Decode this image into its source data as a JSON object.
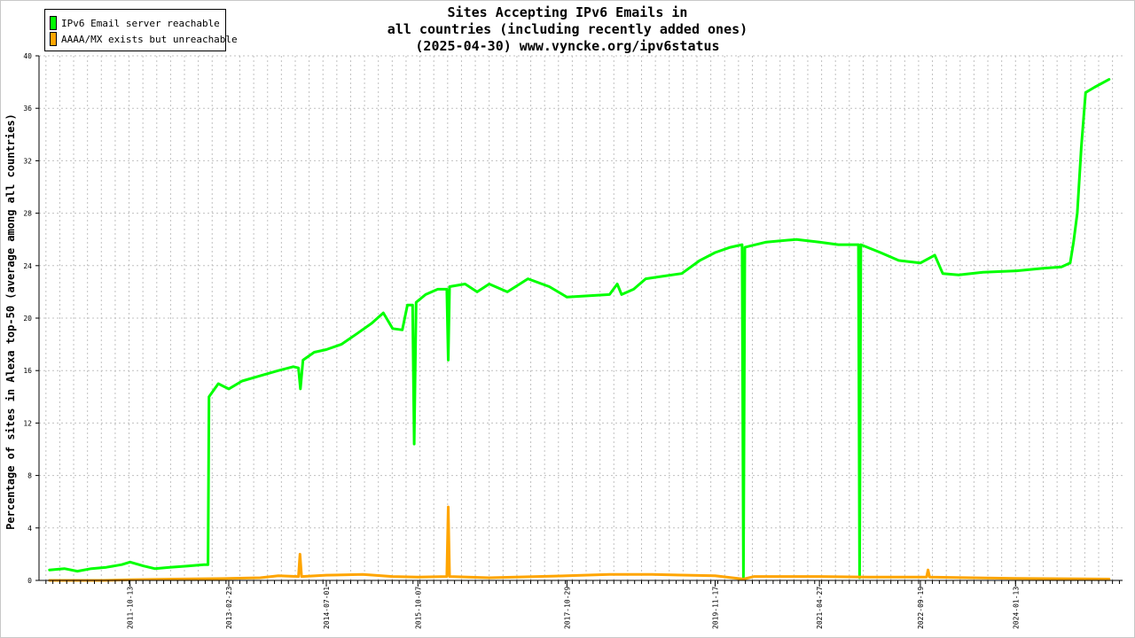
{
  "chart_data": {
    "type": "line",
    "title_lines": [
      "Sites Accepting IPv6 Emails in",
      "all countries (including recently added ones)",
      "(2025-04-30) www.vyncke.org/ipv6status"
    ],
    "xlabel": "",
    "ylabel": "Percentage of sites in Alexa top-50 (average among all countries)",
    "ylim": [
      0,
      40
    ],
    "y_ticks": [
      "0",
      "4",
      "8",
      "12",
      "16",
      "20",
      "24",
      "28",
      "32",
      "36",
      "40"
    ],
    "x_tick_labels": [
      "2011-10-13",
      "2013-02-23",
      "2014-07-01",
      "2015-10-07",
      "2017-10-29",
      "2019-11-17",
      "2021-04-27",
      "2022-09-19",
      "2024-01-13"
    ],
    "grid": true,
    "legend_position": "top-left",
    "series": [
      {
        "name": "IPv6 Email server reachable",
        "color": "#00ff00",
        "points": [
          [
            "2010-09-01",
            0.8
          ],
          [
            "2010-11-15",
            0.9
          ],
          [
            "2011-01-20",
            0.7
          ],
          [
            "2011-04-01",
            0.9
          ],
          [
            "2011-06-15",
            1.0
          ],
          [
            "2011-09-01",
            1.2
          ],
          [
            "2011-10-13",
            1.4
          ],
          [
            "2011-12-20",
            1.1
          ],
          [
            "2012-02-15",
            0.9
          ],
          [
            "2012-05-01",
            1.0
          ],
          [
            "2012-08-01",
            1.1
          ],
          [
            "2012-10-20",
            1.2
          ],
          [
            "2012-11-10",
            1.2
          ],
          [
            "2012-11-15",
            14.0
          ],
          [
            "2013-01-01",
            15.0
          ],
          [
            "2013-02-23",
            14.6
          ],
          [
            "2013-05-01",
            15.2
          ],
          [
            "2013-08-01",
            15.6
          ],
          [
            "2013-11-01",
            16.0
          ],
          [
            "2014-01-15",
            16.3
          ],
          [
            "2014-02-10",
            16.2
          ],
          [
            "2014-02-20",
            14.6
          ],
          [
            "2014-03-05",
            16.8
          ],
          [
            "2014-05-01",
            17.4
          ],
          [
            "2014-07-01",
            17.6
          ],
          [
            "2014-09-15",
            18.0
          ],
          [
            "2014-12-01",
            18.8
          ],
          [
            "2015-02-15",
            19.6
          ],
          [
            "2015-04-15",
            20.4
          ],
          [
            "2015-06-01",
            19.2
          ],
          [
            "2015-07-20",
            19.1
          ],
          [
            "2015-08-15",
            21.0
          ],
          [
            "2015-09-10",
            21.0
          ],
          [
            "2015-09-18",
            10.4
          ],
          [
            "2015-09-28",
            21.2
          ],
          [
            "2015-11-15",
            21.8
          ],
          [
            "2016-01-15",
            22.2
          ],
          [
            "2016-03-01",
            22.2
          ],
          [
            "2016-03-08",
            16.8
          ],
          [
            "2016-03-15",
            22.4
          ],
          [
            "2016-06-01",
            22.6
          ],
          [
            "2016-08-01",
            22.0
          ],
          [
            "2016-10-01",
            22.6
          ],
          [
            "2017-01-01",
            22.0
          ],
          [
            "2017-04-15",
            23.0
          ],
          [
            "2017-08-01",
            22.4
          ],
          [
            "2017-10-29",
            21.6
          ],
          [
            "2018-06-01",
            21.8
          ],
          [
            "2018-07-10",
            22.6
          ],
          [
            "2018-08-01",
            21.8
          ],
          [
            "2018-10-01",
            22.2
          ],
          [
            "2018-12-01",
            23.0
          ],
          [
            "2019-03-01",
            23.2
          ],
          [
            "2019-06-01",
            23.4
          ],
          [
            "2019-09-01",
            24.4
          ],
          [
            "2019-11-17",
            25.0
          ],
          [
            "2020-02-01",
            25.4
          ],
          [
            "2020-04-01",
            25.6
          ],
          [
            "2020-04-08",
            0.2
          ],
          [
            "2020-04-15",
            25.4
          ],
          [
            "2020-08-01",
            25.8
          ],
          [
            "2021-01-01",
            26.0
          ],
          [
            "2021-04-27",
            25.8
          ],
          [
            "2021-08-01",
            25.6
          ],
          [
            "2021-11-10",
            25.6
          ],
          [
            "2021-11-16",
            0.2
          ],
          [
            "2021-11-22",
            25.6
          ],
          [
            "2022-03-01",
            25.0
          ],
          [
            "2022-06-01",
            24.4
          ],
          [
            "2022-09-19",
            24.2
          ],
          [
            "2022-12-01",
            24.8
          ],
          [
            "2023-01-10",
            23.4
          ],
          [
            "2023-04-01",
            23.3
          ],
          [
            "2023-08-01",
            23.5
          ],
          [
            "2024-01-13",
            23.6
          ],
          [
            "2024-06-01",
            23.8
          ],
          [
            "2024-09-01",
            23.9
          ],
          [
            "2024-10-15",
            24.2
          ],
          [
            "2024-11-01",
            25.8
          ],
          [
            "2024-11-20",
            28.0
          ],
          [
            "2024-12-10",
            33.0
          ],
          [
            "2025-01-01",
            37.2
          ],
          [
            "2025-02-15",
            37.6
          ],
          [
            "2025-04-30",
            38.2
          ]
        ]
      },
      {
        "name": "AAAA/MX exists but unreachable",
        "color": "#ffa500",
        "points": [
          [
            "2010-09-01",
            0.0
          ],
          [
            "2011-06-01",
            0.0
          ],
          [
            "2011-10-13",
            0.05
          ],
          [
            "2012-06-01",
            0.1
          ],
          [
            "2013-02-23",
            0.15
          ],
          [
            "2013-08-01",
            0.2
          ],
          [
            "2013-11-01",
            0.35
          ],
          [
            "2014-02-10",
            0.3
          ],
          [
            "2014-02-18",
            2.0
          ],
          [
            "2014-02-26",
            0.3
          ],
          [
            "2014-07-01",
            0.4
          ],
          [
            "2015-01-01",
            0.45
          ],
          [
            "2015-06-01",
            0.3
          ],
          [
            "2015-10-07",
            0.25
          ],
          [
            "2016-03-01",
            0.3
          ],
          [
            "2016-03-08",
            5.6
          ],
          [
            "2016-03-15",
            0.3
          ],
          [
            "2016-10-01",
            0.2
          ],
          [
            "2017-10-29",
            0.35
          ],
          [
            "2018-06-01",
            0.45
          ],
          [
            "2019-01-01",
            0.45
          ],
          [
            "2019-11-17",
            0.35
          ],
          [
            "2020-04-08",
            0.1
          ],
          [
            "2020-06-01",
            0.3
          ],
          [
            "2021-04-27",
            0.3
          ],
          [
            "2022-01-01",
            0.25
          ],
          [
            "2022-09-19",
            0.25
          ],
          [
            "2022-10-20",
            0.25
          ],
          [
            "2022-10-28",
            0.8
          ],
          [
            "2022-11-05",
            0.25
          ],
          [
            "2023-06-01",
            0.2
          ],
          [
            "2024-01-13",
            0.15
          ],
          [
            "2025-04-30",
            0.1
          ]
        ]
      }
    ]
  }
}
